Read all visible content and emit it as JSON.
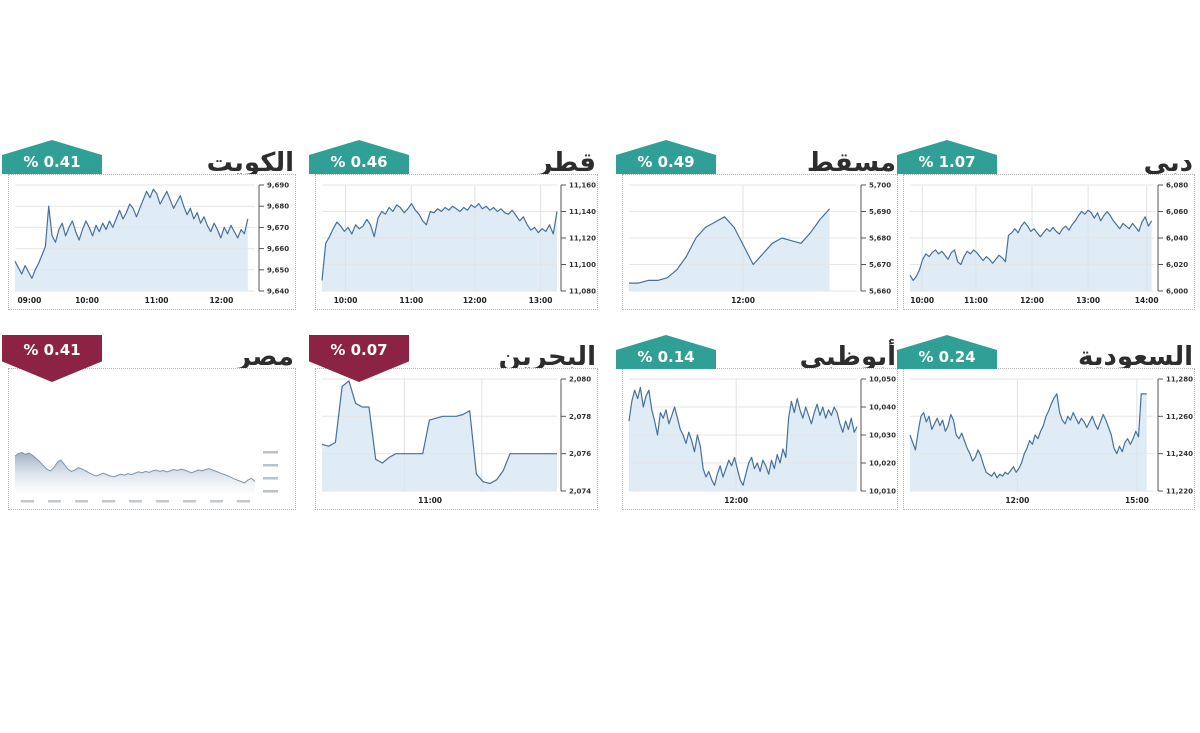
{
  "page": {
    "background": "#ffffff"
  },
  "colors": {
    "up_badge": "#30a096",
    "down_badge": "#8c2344",
    "line": "#46719c",
    "area_fill": "#dce9f4",
    "grid_h": "#e6e6e6",
    "grid_v": "#dde3e8",
    "axis": "#555555",
    "title_text": "#2d2d2d",
    "egypt_line": "#7d96af"
  },
  "chart_data": [
    {
      "id": "kuwait",
      "title": "الكويت",
      "change_label": "% 0.41",
      "direction": "up",
      "type": "area",
      "ylim": [
        9640,
        9690
      ],
      "grid": true,
      "y_ticks": [
        "9,690",
        "9,680",
        "9,670",
        "9,660",
        "9,650",
        "9,640"
      ],
      "x_ticks": [
        {
          "label": "09:00",
          "pos": 0.06
        },
        {
          "label": "10:00",
          "pos": 0.3
        },
        {
          "label": "11:00",
          "pos": 0.59
        },
        {
          "label": "12:00",
          "pos": 0.86
        }
      ],
      "grid_x": [],
      "x_end_frac": 0.97,
      "values": [
        9654,
        9651,
        9648,
        9652,
        9649,
        9646,
        9650,
        9653,
        9657,
        9661,
        9680,
        9666,
        9663,
        9669,
        9672,
        9666,
        9670,
        9673,
        9668,
        9664,
        9669,
        9673,
        9670,
        9666,
        9671,
        9668,
        9672,
        9669,
        9673,
        9670,
        9674,
        9678,
        9674,
        9677,
        9681,
        9679,
        9675,
        9679,
        9683,
        9687,
        9684,
        9688,
        9686,
        9681,
        9684,
        9687,
        9683,
        9679,
        9682,
        9685,
        9680,
        9676,
        9679,
        9674,
        9677,
        9672,
        9675,
        9671,
        9668,
        9672,
        9669,
        9665,
        9670,
        9667,
        9671,
        9668,
        9665,
        9669,
        9667,
        9674
      ]
    },
    {
      "id": "qatar",
      "title": "قطر",
      "change_label": "% 0.46",
      "direction": "up",
      "type": "area",
      "ylim": [
        11080,
        11160
      ],
      "grid": true,
      "y_ticks": [
        "11,160",
        "11,140",
        "11,120",
        "11,100",
        "11,080"
      ],
      "x_ticks": [
        {
          "label": "10:00",
          "pos": 0.1
        },
        {
          "label": "11:00",
          "pos": 0.38
        },
        {
          "label": "12:00",
          "pos": 0.65
        },
        {
          "label": "13:00",
          "pos": 0.93
        }
      ],
      "grid_x": [
        0.1,
        0.38,
        0.65,
        0.93
      ],
      "x_end_frac": 1.0,
      "values": [
        11088,
        11116,
        11121,
        11127,
        11132,
        11129,
        11125,
        11128,
        11123,
        11130,
        11127,
        11129,
        11134,
        11130,
        11121,
        11135,
        11140,
        11138,
        11143,
        11140,
        11145,
        11143,
        11139,
        11142,
        11146,
        11141,
        11138,
        11133,
        11130,
        11140,
        11139,
        11142,
        11140,
        11143,
        11141,
        11144,
        11142,
        11140,
        11143,
        11141,
        11145,
        11143,
        11146,
        11142,
        11144,
        11141,
        11143,
        11140,
        11142,
        11139,
        11138,
        11141,
        11137,
        11133,
        11136,
        11130,
        11126,
        11128,
        11124,
        11127,
        11125,
        11130,
        11123,
        11140
      ]
    },
    {
      "id": "muscat",
      "title": "مسقط",
      "change_label": "% 0.49",
      "direction": "up",
      "type": "area",
      "ylim": [
        5660,
        5700
      ],
      "grid": true,
      "y_ticks": [
        "5,700",
        "5,690",
        "5,680",
        "5,670",
        "5,660"
      ],
      "x_ticks": [
        {
          "label": "12:00",
          "pos": 0.5
        }
      ],
      "grid_x": [
        0.5
      ],
      "x_end_frac": 0.88,
      "values": [
        5663,
        5663,
        5664,
        5664,
        5665,
        5668,
        5673,
        5680,
        5684,
        5686,
        5688,
        5684,
        5677,
        5670,
        5674,
        5678,
        5680,
        5679,
        5678,
        5682,
        5687,
        5691
      ]
    },
    {
      "id": "dubai",
      "title": "دبي",
      "change_label": "% 1.07",
      "direction": "up",
      "type": "area",
      "ylim": [
        6000,
        6080
      ],
      "grid": true,
      "y_ticks": [
        "6,080",
        "6,060",
        "6,040",
        "6,020",
        "6,000"
      ],
      "x_ticks": [
        {
          "label": "10:00",
          "pos": 0.05
        },
        {
          "label": "11:00",
          "pos": 0.27
        },
        {
          "label": "12:00",
          "pos": 0.5
        },
        {
          "label": "13:00",
          "pos": 0.73
        },
        {
          "label": "14:00",
          "pos": 0.97
        }
      ],
      "grid_x": [
        0.05,
        0.27,
        0.5,
        0.73,
        0.97
      ],
      "x_end_frac": 0.99,
      "values": [
        6012,
        6008,
        6011,
        6016,
        6024,
        6028,
        6026,
        6029,
        6031,
        6028,
        6030,
        6027,
        6024,
        6029,
        6031,
        6022,
        6020,
        6026,
        6030,
        6028,
        6031,
        6029,
        6026,
        6023,
        6026,
        6024,
        6021,
        6024,
        6027,
        6025,
        6022,
        6042,
        6044,
        6047,
        6044,
        6049,
        6052,
        6049,
        6045,
        6047,
        6044,
        6041,
        6044,
        6047,
        6045,
        6048,
        6045,
        6043,
        6047,
        6049,
        6046,
        6050,
        6053,
        6057,
        6060,
        6058,
        6061,
        6059,
        6055,
        6059,
        6053,
        6057,
        6060,
        6057,
        6053,
        6050,
        6047,
        6051,
        6049,
        6047,
        6051,
        6048,
        6045,
        6052,
        6056,
        6049,
        6053
      ]
    },
    {
      "id": "egypt",
      "title": "مصر",
      "change_label": "% 0.41",
      "direction": "down",
      "type": "sparkline",
      "ylim": [
        0,
        1
      ],
      "grid": false,
      "y_ticks": [],
      "x_ticks": [],
      "grid_x": [],
      "x_end_frac": 1.0,
      "tick_labels_illegible": true,
      "y_smudge_count": 4,
      "x_smudge_count": 9,
      "values": [
        0.8,
        0.86,
        0.88,
        0.84,
        0.87,
        0.82,
        0.75,
        0.68,
        0.6,
        0.52,
        0.48,
        0.55,
        0.67,
        0.72,
        0.62,
        0.52,
        0.47,
        0.5,
        0.55,
        0.52,
        0.48,
        0.44,
        0.4,
        0.37,
        0.4,
        0.43,
        0.4,
        0.37,
        0.35,
        0.38,
        0.41,
        0.39,
        0.42,
        0.4,
        0.43,
        0.46,
        0.44,
        0.47,
        0.45,
        0.48,
        0.5,
        0.47,
        0.49,
        0.46,
        0.48,
        0.51,
        0.49,
        0.52,
        0.5,
        0.47,
        0.44,
        0.47,
        0.5,
        0.48,
        0.51,
        0.53,
        0.5,
        0.47,
        0.44,
        0.41,
        0.38,
        0.35,
        0.31,
        0.28,
        0.25,
        0.22,
        0.28,
        0.32,
        0.25
      ]
    },
    {
      "id": "bahrain",
      "title": "البحرين",
      "change_label": "% 0.07",
      "direction": "down",
      "type": "area",
      "ylim": [
        2074,
        2080
      ],
      "grid": true,
      "y_ticks": [
        "2,080",
        "2,078",
        "2,076",
        "2,074"
      ],
      "x_ticks": [
        {
          "label": "11:00",
          "pos": 0.46
        }
      ],
      "grid_x": [
        0.35,
        0.68
      ],
      "x_end_frac": 1.0,
      "values": [
        2076.5,
        2076.4,
        2076.6,
        2079.6,
        2079.9,
        2078.7,
        2078.5,
        2078.5,
        2075.7,
        2075.5,
        2075.8,
        2076.0,
        2076.0,
        2076.0,
        2076.0,
        2076.0,
        2077.8,
        2077.9,
        2078.0,
        2078.0,
        2078.0,
        2078.1,
        2078.3,
        2074.9,
        2074.5,
        2074.4,
        2074.6,
        2075.1,
        2076.0,
        2076.0,
        2076.0,
        2076.0,
        2076.0,
        2076.0,
        2076.0,
        2076.0
      ]
    },
    {
      "id": "abudhabi",
      "title": "أبوظبي",
      "change_label": "% 0.14",
      "direction": "up",
      "type": "area",
      "ylim": [
        10010,
        10050
      ],
      "grid": true,
      "y_ticks": [
        "10,050",
        "10,040",
        "10,030",
        "10,020",
        "10,010"
      ],
      "x_ticks": [
        {
          "label": "12:00",
          "pos": 0.47
        }
      ],
      "grid_x": [
        0.47
      ],
      "x_end_frac": 1.0,
      "values": [
        10035,
        10042,
        10046,
        10043,
        10047,
        10040,
        10044,
        10046,
        10039,
        10035,
        10030,
        10038,
        10036,
        10039,
        10034,
        10037,
        10040,
        10036,
        10032,
        10030,
        10027,
        10031,
        10028,
        10024,
        10030,
        10026,
        10018,
        10015,
        10017,
        10014,
        10012,
        10016,
        10019,
        10015,
        10018,
        10021,
        10019,
        10022,
        10018,
        10014,
        10012,
        10016,
        10020,
        10022,
        10018,
        10020,
        10017,
        10021,
        10019,
        10016,
        10021,
        10018,
        10023,
        10020,
        10025,
        10022,
        10036,
        10042,
        10038,
        10043,
        10039,
        10036,
        10040,
        10037,
        10034,
        10038,
        10041,
        10037,
        10040,
        10036,
        10039,
        10037,
        10040,
        10038,
        10034,
        10031,
        10035,
        10032,
        10036,
        10031,
        10033
      ]
    },
    {
      "id": "saudi",
      "title": "السعودية",
      "change_label": "% 0.24",
      "direction": "up",
      "type": "area",
      "ylim": [
        11220,
        11280
      ],
      "grid": true,
      "y_ticks": [
        "11,280",
        "11,260",
        "11,240",
        "11,220"
      ],
      "x_ticks": [
        {
          "label": "12:00",
          "pos": 0.44
        },
        {
          "label": "15:00",
          "pos": 0.93
        }
      ],
      "grid_x": [
        0.44,
        0.93
      ],
      "x_end_frac": 0.97,
      "values": [
        11250,
        11246,
        11242,
        11252,
        11260,
        11262,
        11257,
        11260,
        11253,
        11256,
        11259,
        11255,
        11258,
        11252,
        11255,
        11261,
        11258,
        11250,
        11248,
        11251,
        11247,
        11243,
        11240,
        11236,
        11238,
        11242,
        11239,
        11234,
        11230,
        11229,
        11228,
        11230,
        11227,
        11229,
        11228,
        11230,
        11229,
        11231,
        11233,
        11230,
        11232,
        11235,
        11240,
        11243,
        11247,
        11245,
        11250,
        11248,
        11252,
        11255,
        11260,
        11263,
        11267,
        11270,
        11272,
        11262,
        11258,
        11256,
        11260,
        11258,
        11262,
        11259,
        11256,
        11259,
        11257,
        11254,
        11257,
        11260,
        11256,
        11253,
        11257,
        11261,
        11258,
        11254,
        11250,
        11243,
        11240,
        11244,
        11241,
        11246,
        11248,
        11245,
        11248,
        11252,
        11249,
        11272,
        11272,
        11272
      ]
    }
  ]
}
